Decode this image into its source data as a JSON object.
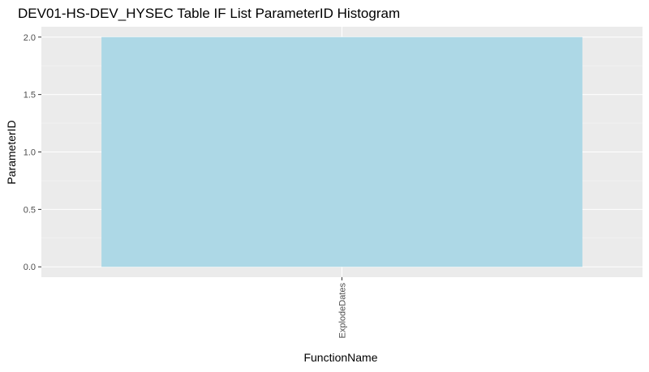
{
  "chart_data": {
    "type": "bar",
    "title": "DEV01-HS-DEV_HYSEC Table IF List ParameterID Histogram",
    "xlabel": "FunctionName",
    "ylabel": "ParameterID",
    "categories": [
      "ExplodeDates"
    ],
    "values": [
      2.0
    ],
    "ylim": [
      -0.09,
      2.09
    ],
    "y_ticks": [
      0.0,
      0.5,
      1.0,
      1.5,
      2.0
    ],
    "y_tick_labels": [
      "0.0",
      "0.5",
      "1.0",
      "1.5",
      "2.0"
    ],
    "grid": true,
    "legend": "none",
    "colors": {
      "bar_fill": "#add8e6",
      "panel_background": "#ebebeb",
      "grid_major": "#ffffff",
      "grid_minor": "#f5f5f5",
      "tick_mark": "#333333"
    }
  }
}
